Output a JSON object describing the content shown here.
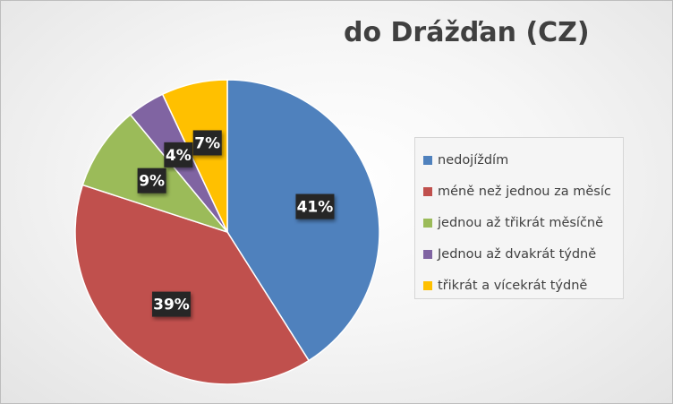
{
  "chart_data": {
    "type": "pie",
    "title": "do Drážďan (CZ)",
    "categories": [
      "nedojíždím",
      "méně než jednou za měsíc",
      "jednou až třikrát měsíčně",
      "Jednou až dvakrát týdně",
      "třikrát a vícekrát týdně"
    ],
    "values": [
      41,
      39,
      9,
      4,
      7
    ],
    "data_labels": [
      "41%",
      "39%",
      "9%",
      "4%",
      "7%"
    ],
    "colors": [
      "#4f81bd",
      "#c0504d",
      "#9bbb59",
      "#8064a2",
      "#ffc000"
    ],
    "legend_position": "right",
    "start_angle": "12 o'clock",
    "direction": "clockwise"
  }
}
